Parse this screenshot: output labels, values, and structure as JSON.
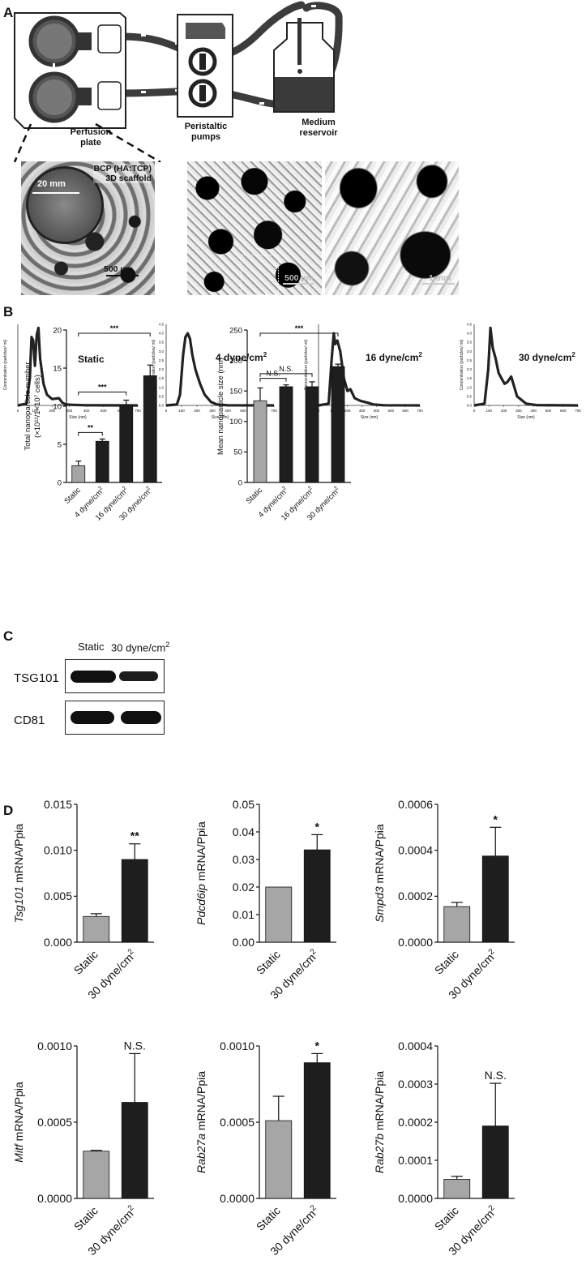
{
  "panel_labels": {
    "a": "A",
    "b": "B",
    "c": "C",
    "d": "D"
  },
  "panel_a": {
    "perfusion_plate": [
      "Perfusion",
      "plate"
    ],
    "peristaltic_pumps": [
      "Peristaltic",
      "pumps"
    ],
    "medium_reservoir": [
      "Medium",
      "reservoir"
    ],
    "scaffold_title": [
      "BCP (HA:TCP)",
      "3D scaffold"
    ],
    "scale_20mm": "20 mm",
    "scale_500um_a": "500 µm",
    "scale_500um_b": "500 µm",
    "scale_1mm": "1 mm"
  },
  "colors": {
    "static_bar": "#a6a6a6",
    "flow_bar": "#1e1e1e",
    "trace": "#222222"
  },
  "chart_data": [
    {
      "id": "nta-static",
      "type": "line",
      "label": "Static",
      "xlabel": "Size (nm)",
      "ylabel": "Concentration (particles/ ml)",
      "xlim": [
        0,
        700
      ],
      "xticks": [
        0,
        100,
        200,
        300,
        400,
        500,
        600,
        700
      ],
      "x": [
        0,
        50,
        70,
        80,
        90,
        100,
        110,
        120,
        130,
        150,
        170,
        200,
        240,
        260,
        280,
        320,
        400,
        700
      ],
      "y": [
        0,
        0.1,
        1.5,
        3.8,
        3.6,
        2.2,
        3.9,
        4.3,
        2.6,
        1.2,
        0.6,
        0.35,
        0.4,
        0.15,
        0.05,
        0.03,
        0.01,
        0
      ]
    },
    {
      "id": "nta-4",
      "type": "line",
      "label": "4 dyne/cm2",
      "xlabel": "Size (nm)",
      "ylabel": "Concentration (particles/ ml)",
      "xlim": [
        0,
        700
      ],
      "ylim": [
        0,
        4.5
      ],
      "xticks": [
        0,
        100,
        200,
        300,
        400,
        500,
        600,
        700
      ],
      "yticks": [
        0,
        0.5,
        1.0,
        1.5,
        2.0,
        2.5,
        3.0,
        3.5,
        4.0,
        4.5
      ],
      "x": [
        0,
        70,
        90,
        110,
        125,
        140,
        155,
        170,
        190,
        220,
        250,
        290,
        330,
        400,
        700
      ],
      "y": [
        0,
        0.05,
        0.6,
        2.8,
        3.8,
        4.0,
        3.7,
        2.8,
        2.0,
        1.2,
        0.6,
        0.2,
        0.05,
        0.01,
        0
      ]
    },
    {
      "id": "nta-16",
      "type": "line",
      "label": "16 dyne/cm2",
      "xlabel": "Size (nm)",
      "ylabel": "Concentration (particles/ ml)",
      "xlim": [
        0,
        700
      ],
      "xticks": [
        0,
        100,
        200,
        300,
        400,
        500,
        600,
        700
      ],
      "x": [
        0,
        70,
        90,
        105,
        115,
        130,
        150,
        175,
        200,
        220,
        250,
        290,
        340,
        380,
        450,
        700
      ],
      "y": [
        0,
        0.1,
        2.5,
        4.0,
        3.4,
        3.6,
        3.0,
        1.5,
        0.8,
        0.9,
        0.4,
        0.25,
        0.15,
        0.05,
        0.01,
        0
      ]
    },
    {
      "id": "nta-30",
      "type": "line",
      "label": "30 dyne/cm2",
      "xlabel": "Size (nm)",
      "ylabel": "Concentration (particles/ ml)",
      "xlim": [
        0,
        700
      ],
      "ylim": [
        0,
        4.5
      ],
      "xticks": [
        0,
        100,
        200,
        300,
        400,
        500,
        600,
        700
      ],
      "yticks": [
        0,
        0.5,
        1.0,
        1.5,
        2.0,
        2.5,
        3.0,
        3.5,
        4.0,
        4.5
      ],
      "x": [
        0,
        70,
        95,
        110,
        125,
        145,
        165,
        185,
        205,
        225,
        250,
        290,
        350,
        420,
        700
      ],
      "y": [
        0,
        0.1,
        2.0,
        4.3,
        3.2,
        2.6,
        1.8,
        1.5,
        1.2,
        1.3,
        1.6,
        0.5,
        0.1,
        0.02,
        0
      ]
    },
    {
      "id": "total-number",
      "type": "bar",
      "ylabel": [
        "Total nanoparticle number",
        "(×10¹¹/1×10⁷ cells)"
      ],
      "categories": [
        "Static",
        "4 dyne/cm2",
        "16 dyne/cm2",
        "30 dyne/cm2"
      ],
      "values": [
        2.2,
        5.4,
        10.1,
        14.0
      ],
      "errors": [
        0.6,
        0.3,
        0.7,
        1.4
      ],
      "ylim": [
        0,
        20
      ],
      "yticks": [
        0,
        5,
        10,
        15,
        20
      ],
      "sig": [
        {
          "from": 0,
          "to": 1,
          "label": "**"
        },
        {
          "from": 0,
          "to": 2,
          "label": "***"
        },
        {
          "from": 0,
          "to": 3,
          "label": "***"
        }
      ]
    },
    {
      "id": "mean-size",
      "type": "bar",
      "ylabel": [
        "Mean nanoparticle size (nm)"
      ],
      "categories": [
        "Static",
        "4 dyne/cm2",
        "16 dyne/cm2",
        "30 dyne/cm2"
      ],
      "values": [
        134,
        157,
        157,
        190
      ],
      "errors": [
        21,
        3,
        8,
        4
      ],
      "ylim": [
        0,
        250
      ],
      "yticks": [
        0,
        50,
        100,
        150,
        200,
        250
      ],
      "sig": [
        {
          "from": 0,
          "to": 1,
          "label": "N.S."
        },
        {
          "from": 0,
          "to": 2,
          "label": "N.S."
        },
        {
          "from": 0,
          "to": 3,
          "label": "***"
        }
      ]
    },
    {
      "id": "tsg101",
      "type": "bar",
      "gene": "Tsg101",
      "ylabel_suffix": " mRNA/Ppia",
      "categories": [
        "Static",
        "30 dyne/cm2"
      ],
      "values": [
        0.0028,
        0.009
      ],
      "errors": [
        0.0003,
        0.0017
      ],
      "ylim": [
        0,
        0.015
      ],
      "yticks": [
        "0.000",
        "0.005",
        "0.010",
        "0.015"
      ],
      "sig": "**"
    },
    {
      "id": "pdcd6ip",
      "type": "bar",
      "gene": "Pdcd6ip",
      "ylabel_suffix": " mRNA/Ppia",
      "categories": [
        "Static",
        "30 dyne/cm2"
      ],
      "values": [
        0.02,
        0.0335
      ],
      "errors": [
        0,
        0.0055
      ],
      "ylim": [
        0,
        0.05
      ],
      "yticks": [
        "0.00",
        "0.01",
        "0.02",
        "0.03",
        "0.04",
        "0.05"
      ],
      "sig": "*"
    },
    {
      "id": "smpd3",
      "type": "bar",
      "gene": "Smpd3",
      "ylabel_suffix": " mRNA/Ppia",
      "categories": [
        "Static",
        "30 dyne/cm2"
      ],
      "values": [
        0.000155,
        0.000375
      ],
      "errors": [
        1.8e-05,
        0.000125
      ],
      "ylim": [
        0,
        0.0006
      ],
      "yticks": [
        "0.0000",
        "0.0002",
        "0.0004",
        "0.0006"
      ],
      "sig": "*"
    },
    {
      "id": "mitf",
      "type": "bar",
      "gene": "Mitf",
      "ylabel_suffix": " mRNA/Ppia",
      "categories": [
        "Static",
        "30 dyne/cm2"
      ],
      "values": [
        0.00031,
        0.00063
      ],
      "errors": [
        5e-06,
        0.00032
      ],
      "ylim": [
        0,
        0.001
      ],
      "yticks": [
        "0.0000",
        "0.0005",
        "0.0010"
      ],
      "sig": "N.S."
    },
    {
      "id": "rab27a",
      "type": "bar",
      "gene": "Rab27a",
      "ylabel_suffix": " mRNA/Ppia",
      "categories": [
        "Static",
        "30 dyne/cm2"
      ],
      "values": [
        0.00051,
        0.00089
      ],
      "errors": [
        0.00016,
        6e-05
      ],
      "ylim": [
        0,
        0.001
      ],
      "yticks": [
        "0.0000",
        "0.0005",
        "0.0010"
      ],
      "sig": "*"
    },
    {
      "id": "rab27b",
      "type": "bar",
      "gene": "Rab27b",
      "ylabel_suffix": " mRNA/Ppia",
      "categories": [
        "Static",
        "30 dyne/cm2"
      ],
      "values": [
        5e-05,
        0.00019
      ],
      "errors": [
        8e-06,
        0.000112
      ],
      "ylim": [
        0,
        0.0004
      ],
      "yticks": [
        "0.0000",
        "0.0001",
        "0.0002",
        "0.0003",
        "0.0004"
      ],
      "sig": "N.S."
    }
  ],
  "blot": {
    "lanes": [
      "Static",
      "30 dyne/cm2"
    ],
    "rows": [
      {
        "protein": "TSG101",
        "band_intensity": [
          1.0,
          0.85
        ]
      },
      {
        "protein": "CD81",
        "band_intensity": [
          1.0,
          1.0
        ]
      }
    ]
  }
}
